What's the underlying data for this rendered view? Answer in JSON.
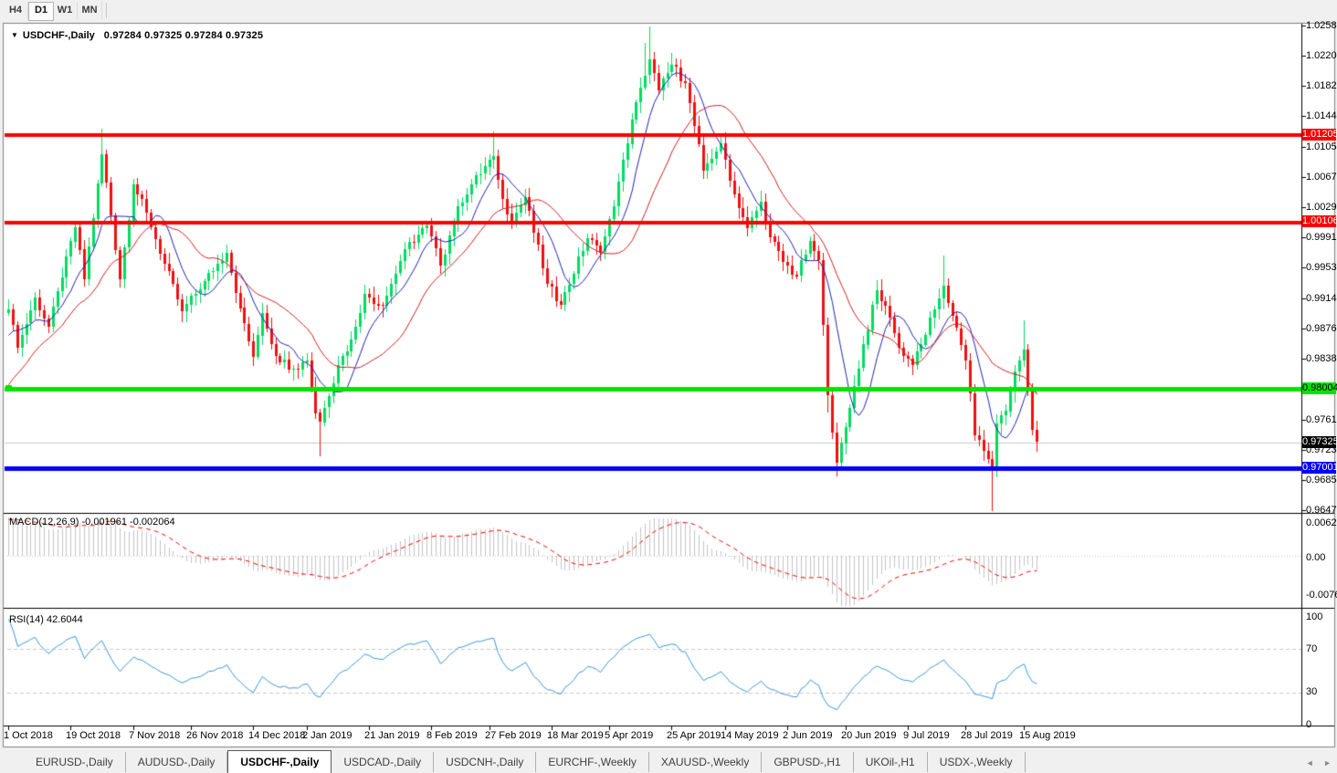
{
  "toolbar": {
    "buttons": [
      "H4",
      "D1",
      "W1",
      "MN"
    ],
    "active": "D1"
  },
  "chart": {
    "type": "candlestick",
    "symbol": "USDCHF-,Daily",
    "menu_arrow_icon": "▼",
    "ohlc_text": "0.97284 0.97325 0.97284 0.97325",
    "y_max": 1.0258,
    "y_min": 0.9646,
    "price_axis_ticks": [
      "1.02580",
      "1.02200",
      "1.01820",
      "1.01440",
      "1.01050",
      "1.00670",
      "1.00290",
      "0.99910",
      "0.99530",
      "0.99140",
      "0.98760",
      "0.98380",
      "0.97610",
      "0.97230",
      "0.96850",
      "0.96470"
    ],
    "hlines": [
      {
        "label": "1.01205",
        "value": 1.01205,
        "color": "#FE0000",
        "text_color": "#FFFFFF",
        "width": 4,
        "handle": false
      },
      {
        "label": "1.00106",
        "value": 1.00106,
        "color": "#FE0000",
        "text_color": "#FFFFFF",
        "width": 4,
        "handle": false
      },
      {
        "label": "0.98004",
        "value": 0.98004,
        "color": "#00E400",
        "text_color": "#000000",
        "width": 5,
        "handle": true
      },
      {
        "label": "0.97001",
        "value": 0.97001,
        "color": "#0000FE",
        "text_color": "#FFFFFF",
        "width": 5,
        "handle": false
      }
    ],
    "current_price": {
      "label": "0.97325",
      "value": 0.97325,
      "line_color": "#C9C9C9",
      "tag_bg": "#000000",
      "tag_text": "#FFFFFF"
    },
    "candle_count": 232,
    "price_path": [
      [
        0,
        0.99
      ],
      [
        2,
        0.9852
      ],
      [
        6,
        0.9915
      ],
      [
        9,
        0.9878
      ],
      [
        12,
        0.994
      ],
      [
        15,
        1.0004
      ],
      [
        17,
        0.9938
      ],
      [
        21,
        1.0096
      ],
      [
        22,
        1.006
      ],
      [
        25,
        0.9938
      ],
      [
        28,
        1.0058
      ],
      [
        31,
        1.0022
      ],
      [
        35,
        0.9958
      ],
      [
        39,
        0.9898
      ],
      [
        44,
        0.9936
      ],
      [
        49,
        0.9972
      ],
      [
        52,
        0.9902
      ],
      [
        55,
        0.984
      ],
      [
        57,
        0.9896
      ],
      [
        60,
        0.9842
      ],
      [
        64,
        0.9826
      ],
      [
        67,
        0.9836
      ],
      [
        69,
        0.977
      ],
      [
        70,
        0.9758
      ],
      [
        74,
        0.983
      ],
      [
        77,
        0.9862
      ],
      [
        80,
        0.992
      ],
      [
        84,
        0.9904
      ],
      [
        89,
        0.9976
      ],
      [
        94,
        1.0006
      ],
      [
        97,
        0.9956
      ],
      [
        101,
        1.003
      ],
      [
        104,
        1.0058
      ],
      [
        109,
        1.0094
      ],
      [
        111,
        1.004
      ],
      [
        113,
        1.0012
      ],
      [
        116,
        1.0042
      ],
      [
        121,
        0.9932
      ],
      [
        124,
        0.9906
      ],
      [
        130,
        0.999
      ],
      [
        133,
        0.9972
      ],
      [
        136,
        1.003
      ],
      [
        140,
        1.014
      ],
      [
        143,
        1.0195
      ],
      [
        144,
        1.0215
      ],
      [
        146,
        1.0176
      ],
      [
        149,
        1.0208
      ],
      [
        152,
        1.0186
      ],
      [
        156,
        1.0076
      ],
      [
        160,
        1.011
      ],
      [
        163,
        1.0046
      ],
      [
        166,
        1.0002
      ],
      [
        169,
        1.0036
      ],
      [
        171,
        0.9992
      ],
      [
        174,
        0.996
      ],
      [
        177,
        0.9942
      ],
      [
        180,
        0.9986
      ],
      [
        182,
        0.9962
      ],
      [
        184,
        0.9792
      ],
      [
        186,
        0.9706
      ],
      [
        189,
        0.9776
      ],
      [
        192,
        0.9856
      ],
      [
        195,
        0.9924
      ],
      [
        198,
        0.989
      ],
      [
        200,
        0.9852
      ],
      [
        203,
        0.983
      ],
      [
        205,
        0.9856
      ],
      [
        208,
        0.99
      ],
      [
        210,
        0.993
      ],
      [
        212,
        0.9892
      ],
      [
        215,
        0.9836
      ],
      [
        217,
        0.9742
      ],
      [
        219,
        0.9722
      ],
      [
        221,
        0.9698
      ],
      [
        222,
        0.9756
      ],
      [
        224,
        0.9772
      ],
      [
        226,
        0.9822
      ],
      [
        228,
        0.985
      ],
      [
        230,
        0.9748
      ],
      [
        231,
        0.97325
      ]
    ],
    "wick_extremes": [
      {
        "day": 21,
        "high": 1.0128
      },
      {
        "day": 109,
        "high": 1.0124
      },
      {
        "day": 143,
        "high": 1.0236
      },
      {
        "day": 144,
        "high": 1.0257
      },
      {
        "day": 149,
        "high": 1.0224
      },
      {
        "day": 210,
        "high": 0.9968
      },
      {
        "day": 228,
        "high": 0.9886
      },
      {
        "day": 70,
        "low": 0.9715
      },
      {
        "day": 184,
        "low": 0.977
      },
      {
        "day": 186,
        "low": 0.969
      },
      {
        "day": 221,
        "low": 0.9645
      }
    ],
    "colors": {
      "up": "#00DC5F",
      "down": "#F01010",
      "ma_fast": "#2323B8",
      "ma_slow": "#D21F1F",
      "macd_hist": "#C4C4C4",
      "macd_signal": "#FA0000",
      "rsi": "#3C96DC",
      "level_dash": "#C8C8C8",
      "panel_bg": "#FFFFFF",
      "frame": "#000000",
      "chrome": "#F0F0F0",
      "border": "#808080"
    }
  },
  "macd": {
    "label": "MACD(12,26,9)",
    "value_main": "-0.001961",
    "value_signal": "-0.002064",
    "params": [
      12,
      26,
      9
    ],
    "axis_labels": [
      "0.006286",
      "0.00",
      "-0.00762"
    ],
    "range_top": 0.0063,
    "range_bottom": -0.0076
  },
  "rsi": {
    "label": "RSI(14)",
    "value": "42.6044",
    "period": 14,
    "axis_labels": [
      "100",
      "70",
      "30",
      "0"
    ],
    "levels": [
      70,
      30
    ]
  },
  "date_axis": [
    {
      "label": "1 Oct 2018",
      "day": 0
    },
    {
      "label": "19 Oct 2018",
      "day": 14
    },
    {
      "label": "7 Nov 2018",
      "day": 28
    },
    {
      "label": "26 Nov 2018",
      "day": 41
    },
    {
      "label": "14 Dec 2018",
      "day": 55
    },
    {
      "label": "2 Jan 2019",
      "day": 67
    },
    {
      "label": "21 Jan 2019",
      "day": 81
    },
    {
      "label": "8 Feb 2019",
      "day": 95
    },
    {
      "label": "27 Feb 2019",
      "day": 108
    },
    {
      "label": "18 Mar 2019",
      "day": 122
    },
    {
      "label": "5 Apr 2019",
      "day": 135
    },
    {
      "label": "25 Apr 2019",
      "day": 149
    },
    {
      "label": "14 May 2019",
      "day": 161
    },
    {
      "label": "2 Jun 2019",
      "day": 175
    },
    {
      "label": "20 Jun 2019",
      "day": 188
    },
    {
      "label": "9 Jul 2019",
      "day": 202
    },
    {
      "label": "28 Jul 2019",
      "day": 215
    },
    {
      "label": "15 Aug 2019",
      "day": 228
    }
  ],
  "tabs": {
    "items": [
      {
        "label": "EURUSD-,Daily",
        "active": false
      },
      {
        "label": "AUDUSD-,Daily",
        "active": false
      },
      {
        "label": "USDCHF-,Daily",
        "active": true
      },
      {
        "label": "USDCAD-,Daily",
        "active": false
      },
      {
        "label": "USDCNH-,Daily",
        "active": false
      },
      {
        "label": "EURCHF-,Weekly",
        "active": false
      },
      {
        "label": "XAUUSD-,Weekly",
        "active": false
      },
      {
        "label": "GBPUSD-,H1",
        "active": false
      },
      {
        "label": "UKOil-,H1",
        "active": false
      },
      {
        "label": "USDX-,Weekly",
        "active": false
      }
    ],
    "scroll_left_icon": "◄",
    "scroll_right_icon": "►"
  }
}
